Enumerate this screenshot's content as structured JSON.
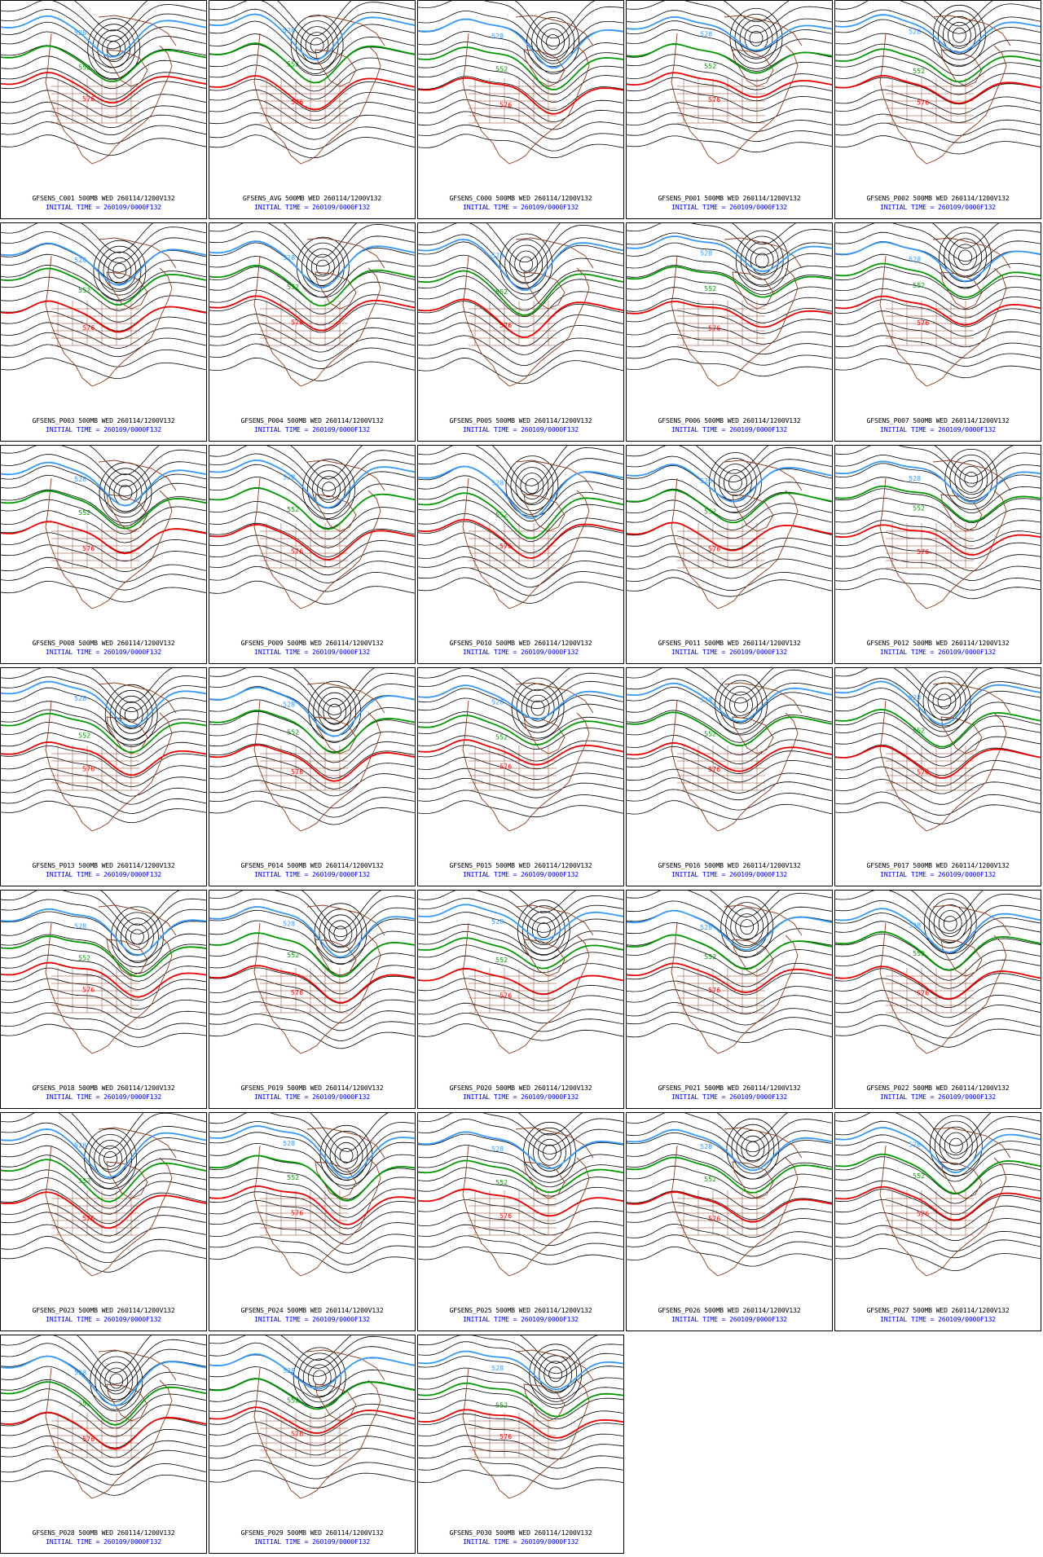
{
  "colors": {
    "c_blue": "#3399ff",
    "c_green": "#009900",
    "c_red": "#ee0000",
    "coast": "#8b3a1a",
    "contour": "#000000",
    "caption_time": "#0000ff"
  },
  "contour_labels": {
    "blue": "528",
    "green": "552",
    "red": "576"
  },
  "panels": [
    {
      "caption": "GFSENS_C001 500MB WED 260114/1200V132",
      "time": "INITIAL TIME = 260109/0000F132"
    },
    {
      "caption": "GFSENS_AVG 500MB WED 260114/1200V132",
      "time": "INITIAL TIME = 260109/0000F132"
    },
    {
      "caption": "GFSENS_C000 500MB WED 260114/1200V132",
      "time": "INITIAL TIME = 260109/0000F132"
    },
    {
      "caption": "GFSENS_P001 500MB WED 260114/1200V132",
      "time": "INITIAL TIME = 260109/0000F132"
    },
    {
      "caption": "GFSENS_P002 500MB WED 260114/1200V132",
      "time": "INITIAL TIME = 260109/0000F132"
    },
    {
      "caption": "GFSENS_P003 500MB WED 260114/1200V132",
      "time": "INITIAL TIME = 260109/0000F132"
    },
    {
      "caption": "GFSENS_P004 500MB WED 260114/1200V132",
      "time": "INITIAL TIME = 260109/0000F132"
    },
    {
      "caption": "GFSENS_P005 500MB WED 260114/1200V132",
      "time": "INITIAL TIME = 260109/0000F132"
    },
    {
      "caption": "GFSENS_P006 500MB WED 260114/1200V132",
      "time": "INITIAL TIME = 260109/0000F132"
    },
    {
      "caption": "GFSENS_P007 500MB WED 260114/1200V132",
      "time": "INITIAL TIME = 260109/0000F132"
    },
    {
      "caption": "GFSENS_P008 500MB WED 260114/1200V132",
      "time": "INITIAL TIME = 260109/0000F132"
    },
    {
      "caption": "GFSENS_P009 500MB WED 260114/1200V132",
      "time": "INITIAL TIME = 260109/0000F132"
    },
    {
      "caption": "GFSENS_P010 500MB WED 260114/1200V132",
      "time": "INITIAL TIME = 260109/0000F132"
    },
    {
      "caption": "GFSENS_P011 500MB WED 260114/1200V132",
      "time": "INITIAL TIME = 260109/0000F132"
    },
    {
      "caption": "GFSENS_P012 500MB WED 260114/1200V132",
      "time": "INITIAL TIME = 260109/0000F132"
    },
    {
      "caption": "GFSENS_P013 500MB WED 260114/1200V132",
      "time": "INITIAL TIME = 260109/0000F132"
    },
    {
      "caption": "GFSENS_P014 500MB WED 260114/1200V132",
      "time": "INITIAL TIME = 260109/0000F132"
    },
    {
      "caption": "GFSENS_P015 500MB WED 260114/1200V132",
      "time": "INITIAL TIME = 260109/0000F132"
    },
    {
      "caption": "GFSENS_P016 500MB WED 260114/1200V132",
      "time": "INITIAL TIME = 260109/0000F132"
    },
    {
      "caption": "GFSENS_P017 500MB WED 260114/1200V132",
      "time": "INITIAL TIME = 260109/0000F132"
    },
    {
      "caption": "GFSENS_P018 500MB WED 260114/1200V132",
      "time": "INITIAL TIME = 260109/0000F132"
    },
    {
      "caption": "GFSENS_P019 500MB WED 260114/1200V132",
      "time": "INITIAL TIME = 260109/0000F132"
    },
    {
      "caption": "GFSENS_P020 500MB WED 260114/1200V132",
      "time": "INITIAL TIME = 260109/0000F132"
    },
    {
      "caption": "GFSENS_P021 500MB WED 260114/1200V132",
      "time": "INITIAL TIME = 260109/0000F132"
    },
    {
      "caption": "GFSENS_P022 500MB WED 260114/1200V132",
      "time": "INITIAL TIME = 260109/0000F132"
    },
    {
      "caption": "GFSENS_P023 500MB WED 260114/1200V132",
      "time": "INITIAL TIME = 260109/0000F132"
    },
    {
      "caption": "GFSENS_P024 500MB WED 260114/1200V132",
      "time": "INITIAL TIME = 260109/0000F132"
    },
    {
      "caption": "GFSENS_P025 500MB WED 260114/1200V132",
      "time": "INITIAL TIME = 260109/0000F132"
    },
    {
      "caption": "GFSENS_P026 500MB WED 260114/1200V132",
      "time": "INITIAL TIME = 260109/0000F132"
    },
    {
      "caption": "GFSENS_P027 500MB WED 260114/1200V132",
      "time": "INITIAL TIME = 260109/0000F132"
    },
    {
      "caption": "GFSENS_P028 500MB WED 260114/1200V132",
      "time": "INITIAL TIME = 260109/0000F132"
    },
    {
      "caption": "GFSENS_P029 500MB WED 260114/1200V132",
      "time": "INITIAL TIME = 260109/0000F132"
    },
    {
      "caption": "GFSENS_P030 500MB WED 260114/1200V132",
      "time": "INITIAL TIME = 260109/0000F132"
    }
  ]
}
